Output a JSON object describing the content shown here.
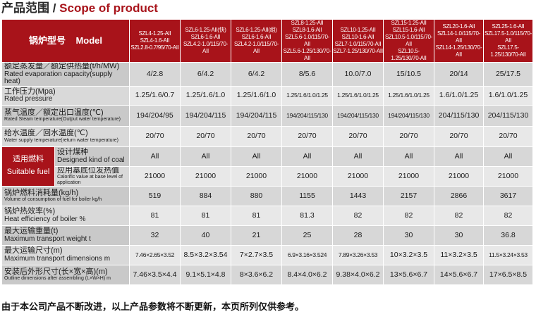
{
  "page_title": {
    "cn": "产品范围",
    "sep": " / ",
    "en": "Scope of product"
  },
  "header": {
    "label_cn": "锅炉型号",
    "label_en": "Model",
    "models": [
      [
        "SZL4-1.25-AII",
        "SZL4-1.6-AII",
        "SZL2.8-0.7/95/70-AII"
      ],
      [
        "SZL6-1.25-AII(快)",
        "SZL6-1.6-AII",
        "SZL4.2-1.0/115/70-AII"
      ],
      [
        "SZL6-1.25-AII(组)",
        "SZL6-1.6-AII",
        "SZL4.2-1.0/115/70-AII"
      ],
      [
        "SZL8-1.25-AII",
        "SZL8-1.6-AII",
        "SZL5.6-1.0/115/70-AII",
        "SZL5.6-1.25/130/70-AII"
      ],
      [
        "SZL10-1.25-AII",
        "SZL10-1.6-AII",
        "SZL7-1.0/115/70-AII",
        "SZL7-1.25/130/70-AII"
      ],
      [
        "SZL15-1.25-AII",
        "SZL15-1.6-AII",
        "SZL10.5-1.0/115/70-AII",
        "SZL10.5-1.25/130/70-AII"
      ],
      [
        "SZL20-1.6-AII",
        "SZL14-1.0/115/70-AII",
        "SZL14-1.25/130/70-AII"
      ],
      [
        "SZL25-1.6-AII",
        "SZL17.5-1.0/115/70-AII",
        "SZL17.5-1.25/130/70-AII"
      ]
    ]
  },
  "rows": [
    {
      "cn": "额定蒸发量／额定供热量(t/h/MW)",
      "en": "Rated evaporation capacity(supply heat)",
      "values": [
        "4/2.8",
        "6/4.2",
        "6/4.2",
        "8/5.6",
        "10.0/7.0",
        "15/10.5",
        "20/14",
        "25/17.5"
      ]
    },
    {
      "cn": "工作压力(Mpa)",
      "en": "Rated pressure",
      "values": [
        "1.25/1.6/0.7",
        "1.25/1.6/1.0",
        "1.25/1.6/1.0",
        "1.25/1.6/1.0/1.25",
        "1.25/1.6/1.0/1.25",
        "1.25/1.6/1.0/1.25",
        "1.6/1.0/1.25",
        "1.6/1.0/1.25"
      ]
    },
    {
      "cn": "蒸气温度／额定出口温度(℃)",
      "en": "Rated Steam temperature(Output water temperature)",
      "values": [
        "194/204/95",
        "194/204/115",
        "194/204/115",
        "194/204/115/130",
        "194/204/115/130",
        "194/204/115/130",
        "204/115/130",
        "204/115/130"
      ]
    },
    {
      "cn": "给水温度／回水温度(℃)",
      "en": "Water supply temperature(return water temperature)",
      "values": [
        "20/70",
        "20/70",
        "20/70",
        "20/70",
        "20/70",
        "20/70",
        "20/70",
        "20/70"
      ]
    }
  ],
  "fuel": {
    "cn": "适用燃料",
    "en": "Suitable fuel",
    "coal": {
      "cn": "设计煤种",
      "en": "Designed kind of coal",
      "values": [
        "All",
        "All",
        "All",
        "All",
        "All",
        "All",
        "All",
        "All"
      ]
    },
    "calorific": {
      "cn": "应用基底位发热值",
      "en": "Calorific value at base level of application",
      "values": [
        "21000",
        "21000",
        "21000",
        "21000",
        "21000",
        "21000",
        "21000",
        "21000"
      ]
    }
  },
  "rows2": [
    {
      "cn": "锅炉燃料消耗量(kg/h)",
      "en": "Volume of consumption of fuel for boiler  kg/h",
      "values": [
        "519",
        "884",
        "880",
        "1155",
        "1443",
        "2157",
        "2866",
        "3617"
      ]
    },
    {
      "cn": "锅炉热效率(%)",
      "en": "Heat efficiency of boiler  %",
      "values": [
        "81",
        "81",
        "81",
        "81.3",
        "82",
        "82",
        "82",
        "82"
      ]
    },
    {
      "cn": "最大运输重量(t)",
      "en": "Maximum transport weight  t",
      "values": [
        "32",
        "40",
        "21",
        "25",
        "28",
        "30",
        "30",
        "36.8"
      ]
    },
    {
      "cn": "最大运输尺寸(m)",
      "en": "Maximum transport dimensions  m",
      "values": [
        "7.46×2.65×3.52",
        "8.5×3.2×3.54",
        "7×2.7×3.5",
        "6.9×3.16×3.524",
        "7.89×3.26×3.53",
        "10×3.2×3.5",
        "11×3.2×3.5",
        "11.5×3.24×3.53"
      ]
    },
    {
      "cn": "安装后外形尺寸(长×宽×高)(m)",
      "en": "Outline dimensions after assembling (L×W×H)  m",
      "values": [
        "7.46×3.5×4.4",
        "9.1×5.1×4.8",
        "8×3.6×6.2",
        "8.4×4.0×6.2",
        "9.38×4.0×6.2",
        "13×5.6×6.7",
        "14×5.6×6.7",
        "17×6.5×8.5"
      ]
    }
  ],
  "footer": "由于本公司产品不断改进，以上产品参数将不断更新，本页所列仅供参考。"
}
